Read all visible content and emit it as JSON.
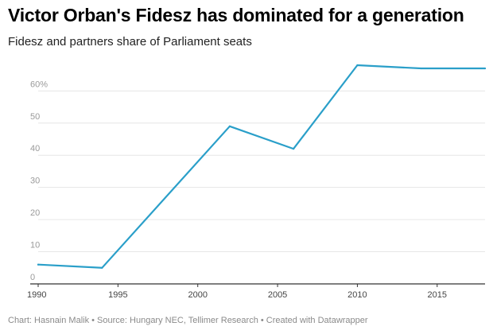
{
  "header": {
    "title": "Victor Orban's Fidesz has dominated for a generation",
    "subtitle": "Fidesz and partners share of Parliament seats"
  },
  "footer": {
    "text": "Chart: Hasnain Malik • Source: Hungary NEC, Tellimer Research • Created with Datawrapper"
  },
  "colors": {
    "line": "#2a9fc9",
    "grid": "#e6e6e6",
    "axis": "#333333"
  },
  "chart_data": {
    "type": "line",
    "title": "Victor Orban's Fidesz has dominated for a generation",
    "subtitle": "Fidesz and partners share of Parliament seats",
    "xlabel": "",
    "ylabel": "",
    "x": [
      1990,
      1994,
      2002,
      2006,
      2010,
      2014,
      2018
    ],
    "series": [
      {
        "values": [
          6,
          5,
          49,
          42,
          68,
          67,
          67
        ]
      }
    ],
    "xlim": [
      1990,
      2018
    ],
    "ylim": [
      0,
      68
    ],
    "x_ticks": [
      1990,
      1995,
      2000,
      2005,
      2010,
      2015
    ],
    "y_ticks": [
      0,
      10,
      20,
      30,
      40,
      50,
      60
    ],
    "y_tick_labels": [
      "0",
      "10",
      "20",
      "30",
      "40",
      "50",
      "60%"
    ],
    "grid": true,
    "legend": "none"
  }
}
